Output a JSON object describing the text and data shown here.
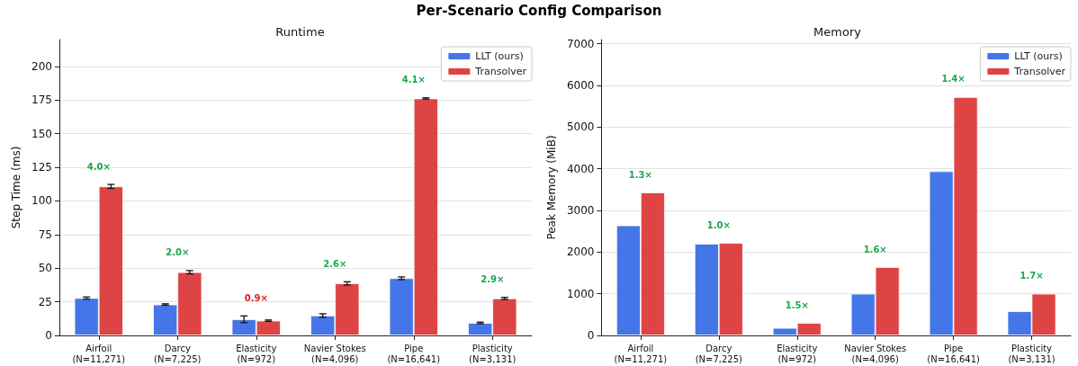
{
  "chart_data": [
    {
      "type": "bar",
      "title": "Runtime",
      "ylabel": "Step Time (ms)",
      "categories": [
        "Airfoil\n(N=11,271)",
        "Darcy\n(N=7,225)",
        "Elasticity\n(N=972)",
        "Navier Stokes\n(N=4,096)",
        "Pipe\n(N=16,641)",
        "Plasticity\n(N=3,131)"
      ],
      "series": [
        {
          "name": "LLT (ours)",
          "color": "#3b6fe8",
          "values": [
            27.8,
            23,
            12,
            14.8,
            42.5,
            9.3
          ],
          "errors": [
            0.8,
            0.5,
            2.5,
            1.3,
            1,
            0.6
          ]
        },
        {
          "name": "Transolver",
          "color": "#dc3a3a",
          "values": [
            110.8,
            47,
            11,
            38.7,
            176.2,
            27.5
          ],
          "errors": [
            1.5,
            1.2,
            0.5,
            1.2,
            0.5,
            0.8
          ]
        }
      ],
      "ylim": [
        0,
        220
      ],
      "yticks": [
        0,
        25,
        50,
        75,
        100,
        125,
        150,
        175,
        200
      ],
      "grid": "y",
      "legend": "top right",
      "annotations": [
        "Per-Scenario Config Comparison",
        "4.0×",
        "2.0×",
        "0.9×",
        "2.6×",
        "4.1×",
        "2.9×"
      ]
    },
    {
      "type": "bar",
      "title": "Memory",
      "ylabel": "Peak Memory (MiB)",
      "categories": [
        "Airfoil\n(N=11,271)",
        "Darcy\n(N=7,225)",
        "Elasticity\n(N=972)",
        "Navier Stokes\n(N=4,096)",
        "Pipe\n(N=16,641)",
        "Plasticity\n(N=3,131)"
      ],
      "series": [
        {
          "name": "LLT (ours)",
          "color": "#3b6fe8",
          "values": [
            2640,
            2200,
            180,
            1000,
            3940,
            580
          ]
        },
        {
          "name": "Transolver",
          "color": "#dc3a3a",
          "values": [
            3430,
            2220,
            300,
            1640,
            5720,
            1000
          ]
        }
      ],
      "ylim": [
        0,
        7100
      ],
      "yticks": [
        0,
        1000,
        2000,
        3000,
        4000,
        5000,
        6000,
        7000
      ],
      "grid": "y",
      "legend": "top right",
      "annotations": [
        "1.3×",
        "1.0×",
        "1.5×",
        "1.6×",
        "1.4×",
        "1.7×"
      ]
    }
  ]
}
